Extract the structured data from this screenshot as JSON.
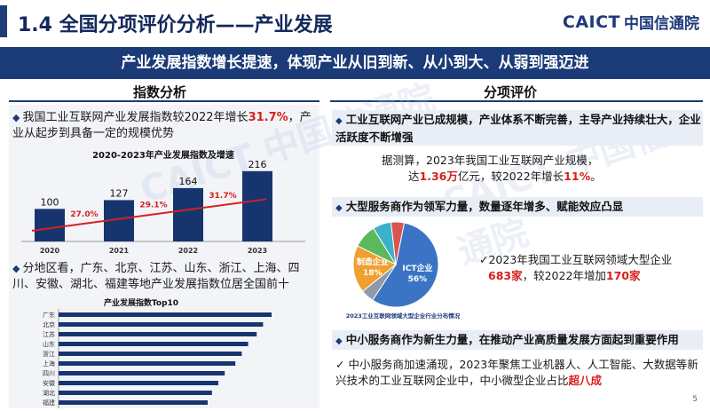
{
  "header": {
    "title": "1.4  全国分项评价分析——产业发展",
    "logo_en": "CAICT",
    "logo_cn": "中国信通院"
  },
  "banner": "产业发展指数增长提速，体现产业从旧到新、从小到大、从弱到强迈进",
  "left_section_title": "指数分析",
  "right_section_title": "分项评价",
  "left_bullet1": {
    "prefix": "我国工业互联网产业发展指数较2022年增长",
    "highlight": "31.7%",
    "suffix": "，产业从起步到具备一定的规模优势"
  },
  "left_bullet2": "分地区看，广东、北京、江苏、山东、浙江、上海、四川、安徽、湖北、福建等地产业发展指数位居全国前十",
  "right_head1": "工业互联网产业已成规模，产业体系不断完善，主导产业持续壮大，企业活跃度不断增强",
  "right_note1": {
    "line1": "据测算，2023年我国工业互联网产业规模，",
    "prefix": "达",
    "highlight1": "1.36万",
    "mid": "亿元，较2022年增长",
    "highlight2": "11%",
    "suffix": "。"
  },
  "right_head2": "大型服务商作为领军力量，数量逐年增多、赋能效应凸显",
  "right_note2": {
    "line1": "✓2023年我国工业互联网领域大型企业",
    "highlight1": "683家",
    "mid": "，较2022年增加",
    "highlight2": "170家"
  },
  "right_head3": "中小服务商作为新生力量，在推动产业高质量发展方面起到重要作用",
  "right_note3": {
    "line1": "✓  中小服务商加速涌现，2023年聚焦工业机器人、人工智能、大数据等新兴技术的工业互联网企业中，中小微型企业占比",
    "highlight": "超八成"
  },
  "page_number": "5",
  "colors": {
    "navy": "#1b3a78",
    "red": "#d6201f",
    "pie_blue": "#3b74c4",
    "pie_orange": "#f0a030",
    "pie_green": "#5cb85c",
    "pie_gray": "#8e9aa8",
    "pie_teal": "#3bb0c9",
    "pie_red": "#d9534f"
  },
  "chart_data": [
    {
      "type": "bar",
      "title": "2020-2023年产业发展指数及增速",
      "categories": [
        "2020",
        "2021",
        "2022",
        "2023"
      ],
      "values": [
        100,
        127,
        164,
        216
      ],
      "growth_labels": [
        "27.0%",
        "29.1%",
        "31.7%"
      ],
      "ylim": [
        0,
        240
      ]
    },
    {
      "type": "bar",
      "orientation": "horizontal",
      "title": "产业发展指数Top10",
      "categories": [
        "广东",
        "北京",
        "江苏",
        "山东",
        "浙江",
        "上海",
        "四川",
        "安徽",
        "湖北",
        "福建"
      ],
      "values": [
        100,
        96,
        93,
        89,
        86,
        83,
        78,
        75,
        72,
        70
      ]
    },
    {
      "type": "pie",
      "title": "2023工业互联网领域大型企业行业分布情况",
      "slices": [
        {
          "label": "ICT企业",
          "percent": "56%",
          "value": 56
        },
        {
          "label": "",
          "percent": "",
          "value": 5
        },
        {
          "label": "制造企业",
          "percent": "18%",
          "value": 18
        },
        {
          "label": "",
          "percent": "",
          "value": 9
        },
        {
          "label": "",
          "percent": "",
          "value": 7
        },
        {
          "label": "",
          "percent": "",
          "value": 5
        }
      ]
    }
  ]
}
